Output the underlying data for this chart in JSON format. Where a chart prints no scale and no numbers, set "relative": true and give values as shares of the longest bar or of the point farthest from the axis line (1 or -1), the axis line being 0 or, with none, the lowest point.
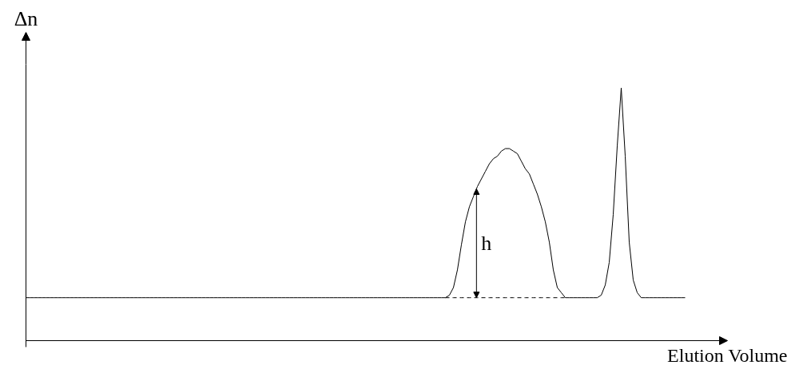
{
  "chart_data": {
    "type": "line",
    "relative": true,
    "xlabel": "Elution Volume",
    "ylabel": "Δn",
    "categories": [
      null,
      null,
      null,
      null,
      null,
      null,
      null,
      null,
      null,
      null,
      null,
      null,
      null,
      null,
      null,
      null,
      null,
      null,
      null,
      null,
      null,
      null,
      null,
      null,
      null,
      null,
      null,
      null,
      null,
      null,
      null,
      null,
      null,
      null,
      null,
      null,
      null,
      null,
      null,
      null,
      null,
      null,
      null,
      null,
      null,
      null,
      null,
      null,
      null,
      null,
      null,
      null,
      null,
      null,
      null,
      null,
      null,
      null,
      null,
      null,
      null,
      null,
      null,
      null,
      null,
      null,
      null,
      null,
      null,
      null,
      null,
      null,
      null,
      null,
      null,
      null,
      null,
      null,
      null,
      null,
      null,
      null,
      null,
      null,
      null,
      null,
      null,
      null,
      null,
      null,
      null,
      null,
      null,
      null,
      null,
      null,
      null,
      null,
      null,
      null,
      null,
      null,
      null,
      null,
      null,
      null,
      null,
      null,
      null,
      null,
      null,
      null,
      null,
      null,
      null,
      null,
      null,
      null,
      null,
      null,
      null,
      null,
      null,
      null,
      null,
      null,
      null,
      null,
      null,
      null,
      null,
      null,
      null,
      null,
      null,
      null,
      null,
      null,
      null,
      null,
      null,
      null,
      null,
      null,
      null,
      null,
      null,
      null,
      null,
      null,
      null,
      null,
      null,
      null,
      null,
      null,
      null,
      null,
      null,
      null,
      null,
      null,
      null,
      null,
      null,
      null
    ],
    "series": [
      {
        "color": "#000000",
        "values": [
          0.17,
          0.17,
          0.17,
          0.17,
          0.17,
          0.17,
          0.17,
          0.17,
          0.17,
          0.17,
          0.17,
          0.17,
          0.17,
          0.17,
          0.17,
          0.17,
          0.17,
          0.17,
          0.17,
          0.17,
          0.17,
          0.17,
          0.17,
          0.17,
          0.17,
          0.17,
          0.17,
          0.17,
          0.17,
          0.17,
          0.17,
          0.17,
          0.17,
          0.17,
          0.17,
          0.17,
          0.17,
          0.17,
          0.17,
          0.17,
          0.17,
          0.17,
          0.17,
          0.17,
          0.17,
          0.17,
          0.17,
          0.17,
          0.17,
          0.17,
          0.17,
          0.17,
          0.17,
          0.17,
          0.17,
          0.17,
          0.17,
          0.17,
          0.17,
          0.17,
          0.17,
          0.17,
          0.17,
          0.17,
          0.17,
          0.17,
          0.17,
          0.17,
          0.17,
          0.17,
          0.17,
          0.17,
          0.17,
          0.17,
          0.17,
          0.17,
          0.17,
          0.17,
          0.17,
          0.17,
          0.17,
          0.17,
          0.17,
          0.17,
          0.17,
          0.17,
          0.17,
          0.17,
          0.17,
          0.17,
          0.17,
          0.17,
          0.17,
          0.17,
          0.17,
          0.17,
          0.17,
          0.17,
          0.17,
          0.17,
          0.17,
          0.17,
          0.17,
          0.17,
          0.17,
          0.17,
          0.18,
          0.21,
          0.28,
          0.38,
          0.47,
          0.53,
          0.57,
          0.61,
          0.64,
          0.67,
          0.7,
          0.72,
          0.73,
          0.75,
          0.76,
          0.76,
          0.75,
          0.74,
          0.71,
          0.68,
          0.66,
          0.62,
          0.58,
          0.53,
          0.47,
          0.39,
          0.28,
          0.21,
          0.19,
          0.17,
          0.17,
          0.17,
          0.17,
          0.17,
          0.17,
          0.17,
          0.17,
          0.17,
          0.18,
          0.22,
          0.31,
          0.5,
          0.77,
          1,
          0.73,
          0.39,
          0.24,
          0.19,
          0.17,
          0.17,
          0.17,
          0.17,
          0.17,
          0.17,
          0.17,
          0.17,
          0.17,
          0.17,
          0.17,
          0.17
        ]
      },
      {
        "color": "#000000",
        "line_style": "dashed",
        "values": [
          null,
          null,
          null,
          null,
          null,
          null,
          null,
          null,
          null,
          null,
          null,
          null,
          null,
          null,
          null,
          null,
          null,
          null,
          null,
          null,
          null,
          null,
          null,
          null,
          null,
          null,
          null,
          null,
          null,
          null,
          null,
          null,
          null,
          null,
          null,
          null,
          null,
          null,
          null,
          null,
          null,
          null,
          null,
          null,
          null,
          null,
          null,
          null,
          null,
          null,
          null,
          null,
          null,
          null,
          null,
          null,
          null,
          null,
          null,
          null,
          null,
          null,
          null,
          null,
          null,
          null,
          null,
          null,
          null,
          null,
          null,
          null,
          null,
          null,
          null,
          null,
          null,
          null,
          null,
          null,
          null,
          null,
          null,
          null,
          null,
          null,
          null,
          null,
          null,
          null,
          null,
          null,
          null,
          null,
          null,
          null,
          null,
          null,
          null,
          null,
          null,
          null,
          null,
          null,
          null,
          0.17,
          0.17,
          0.17,
          0.17,
          0.17,
          0.17,
          0.17,
          0.17,
          0.17,
          0.17,
          0.17,
          0.17,
          0.17,
          0.17,
          0.17,
          0.17,
          0.17,
          0.17,
          0.17,
          0.17,
          0.17,
          0.17,
          0.17,
          0.17,
          0.17,
          0.17,
          0.17,
          0.17,
          0.17,
          0.17,
          0.17,
          null,
          null,
          null,
          null,
          null,
          null,
          null,
          null,
          null,
          null,
          null,
          null,
          null,
          null,
          null,
          null,
          null,
          null,
          null,
          null,
          null,
          null,
          null,
          null,
          null,
          null,
          null,
          null,
          null,
          null
        ]
      }
    ],
    "annotations": [
      "h"
    ]
  }
}
